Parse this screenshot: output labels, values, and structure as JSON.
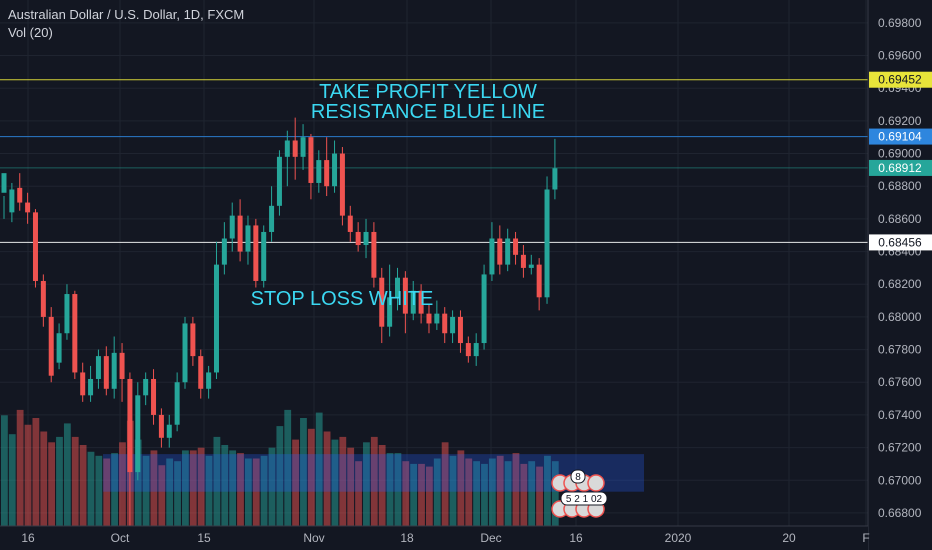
{
  "header": {
    "title": "Australian Dollar / U.S. Dollar, 1D, FXCM",
    "indicator": "Vol (20)"
  },
  "colors": {
    "background": "#131722",
    "grid": "#1f2430",
    "up": "#26a69a",
    "down": "#ef5350",
    "axis_text": "#b2b5be",
    "annotation": "#3bd8f2",
    "yellow_line": "#e8e43a",
    "blue_line": "#2e86de",
    "white_line": "#ffffff",
    "zone_fill": "#2962ff"
  },
  "annotations": [
    {
      "text": "TAKE PROFIT YELLOW"
    },
    {
      "text": "RESISTANCE BLUE LINE"
    },
    {
      "text": "STOP LOSS WHITE"
    }
  ],
  "event_badges": [
    {
      "text": "8"
    },
    {
      "text": "5 2 1 02"
    }
  ],
  "chart_data": {
    "type": "candlestick",
    "x_ticks": [
      "16",
      "Oct",
      "15",
      "Nov",
      "18",
      "Dec",
      "16",
      "2020",
      "20",
      "F"
    ],
    "y_ticks": [
      "0.69800",
      "0.69600",
      "0.69400",
      "0.69200",
      "0.69000",
      "0.68800",
      "0.68600",
      "0.68400",
      "0.68200",
      "0.68000",
      "0.67800",
      "0.67600",
      "0.67400",
      "0.67200",
      "0.67000",
      "0.66800"
    ],
    "ylim": [
      0.6672,
      0.6994
    ],
    "price_lines": [
      {
        "value": 0.69452,
        "label": "0.69452",
        "color": "#e8e43a"
      },
      {
        "value": 0.69104,
        "label": "0.69104",
        "color": "#2e86de"
      },
      {
        "value": 0.68912,
        "label": "0.68912",
        "color": "#26a69a"
      },
      {
        "value": 0.68456,
        "label": "0.68456",
        "color": "#ffffff"
      }
    ],
    "zone": {
      "y_top": 0.6716,
      "y_bottom": 0.6693
    },
    "candles": [
      [
        0.6876,
        0.6888,
        0.6874,
        0.686
      ],
      [
        0.6864,
        0.6878,
        0.6882,
        0.6858
      ],
      [
        0.6879,
        0.687,
        0.6888,
        0.6865
      ],
      [
        0.687,
        0.6864,
        0.6876,
        0.6857
      ],
      [
        0.6864,
        0.6822,
        0.6866,
        0.6818
      ],
      [
        0.6822,
        0.68,
        0.6826,
        0.6794
      ],
      [
        0.68,
        0.6764,
        0.6806,
        0.676
      ],
      [
        0.6772,
        0.679,
        0.6796,
        0.6768
      ],
      [
        0.679,
        0.6814,
        0.682,
        0.6786
      ],
      [
        0.6814,
        0.6766,
        0.6816,
        0.6762
      ],
      [
        0.6766,
        0.6752,
        0.6772,
        0.6748
      ],
      [
        0.6752,
        0.6762,
        0.677,
        0.6748
      ],
      [
        0.6762,
        0.6776,
        0.678,
        0.6756
      ],
      [
        0.6776,
        0.6756,
        0.6782,
        0.6752
      ],
      [
        0.6756,
        0.6778,
        0.6788,
        0.675
      ],
      [
        0.6778,
        0.6762,
        0.6784,
        0.6748
      ],
      [
        0.6762,
        0.6705,
        0.6766,
        0.667
      ],
      [
        0.6705,
        0.6752,
        0.676,
        0.67
      ],
      [
        0.6752,
        0.6762,
        0.6766,
        0.6746
      ],
      [
        0.6762,
        0.674,
        0.6768,
        0.6734
      ],
      [
        0.674,
        0.6726,
        0.6744,
        0.672
      ],
      [
        0.6726,
        0.6734,
        0.674,
        0.672
      ],
      [
        0.6734,
        0.676,
        0.6766,
        0.673
      ],
      [
        0.676,
        0.6796,
        0.68,
        0.6756
      ],
      [
        0.6796,
        0.6776,
        0.68,
        0.677
      ],
      [
        0.6776,
        0.6756,
        0.678,
        0.675
      ],
      [
        0.6756,
        0.6766,
        0.677,
        0.675
      ],
      [
        0.6766,
        0.6832,
        0.6846,
        0.6762
      ],
      [
        0.6832,
        0.6848,
        0.6858,
        0.6826
      ],
      [
        0.6848,
        0.6862,
        0.687,
        0.684
      ],
      [
        0.6862,
        0.684,
        0.6872,
        0.6834
      ],
      [
        0.684,
        0.6856,
        0.6862,
        0.6832
      ],
      [
        0.6856,
        0.6822,
        0.686,
        0.6818
      ],
      [
        0.6822,
        0.6852,
        0.6856,
        0.6818
      ],
      [
        0.6852,
        0.6868,
        0.688,
        0.6846
      ],
      [
        0.6868,
        0.6898,
        0.6902,
        0.6862
      ],
      [
        0.6898,
        0.6908,
        0.6914,
        0.688
      ],
      [
        0.6908,
        0.6898,
        0.6922,
        0.6884
      ],
      [
        0.6898,
        0.691,
        0.6918,
        0.689
      ],
      [
        0.691,
        0.6882,
        0.6912,
        0.6872
      ],
      [
        0.6882,
        0.6896,
        0.6902,
        0.6876
      ],
      [
        0.6896,
        0.688,
        0.691,
        0.6874
      ],
      [
        0.688,
        0.69,
        0.6908,
        0.6876
      ],
      [
        0.69,
        0.6862,
        0.6904,
        0.6856
      ],
      [
        0.6862,
        0.6852,
        0.6868,
        0.6846
      ],
      [
        0.6852,
        0.6844,
        0.6858,
        0.684
      ],
      [
        0.6844,
        0.6852,
        0.686,
        0.6836
      ],
      [
        0.6852,
        0.6824,
        0.6858,
        0.6818
      ],
      [
        0.6824,
        0.6794,
        0.683,
        0.6784
      ],
      [
        0.6794,
        0.6812,
        0.6832,
        0.6788
      ],
      [
        0.6812,
        0.6824,
        0.683,
        0.6804
      ],
      [
        0.6824,
        0.6802,
        0.6828,
        0.679
      ],
      [
        0.6802,
        0.6816,
        0.6822,
        0.6798
      ],
      [
        0.6816,
        0.6802,
        0.682,
        0.6796
      ],
      [
        0.6802,
        0.6796,
        0.6808,
        0.679
      ],
      [
        0.6796,
        0.6802,
        0.681,
        0.6792
      ],
      [
        0.6802,
        0.679,
        0.6806,
        0.6784
      ],
      [
        0.679,
        0.68,
        0.6804,
        0.6784
      ],
      [
        0.68,
        0.6784,
        0.6804,
        0.6778
      ],
      [
        0.6784,
        0.6776,
        0.6788,
        0.6772
      ],
      [
        0.6776,
        0.6784,
        0.679,
        0.677
      ],
      [
        0.6784,
        0.6826,
        0.6832,
        0.678
      ],
      [
        0.6826,
        0.6848,
        0.6858,
        0.6822
      ],
      [
        0.6848,
        0.6832,
        0.6856,
        0.6826
      ],
      [
        0.6832,
        0.6848,
        0.6854,
        0.6828
      ],
      [
        0.6848,
        0.6838,
        0.6852,
        0.6832
      ],
      [
        0.6838,
        0.683,
        0.6844,
        0.6824
      ],
      [
        0.683,
        0.6832,
        0.6838,
        0.6826
      ],
      [
        0.6832,
        0.6812,
        0.6836,
        0.6804
      ],
      [
        0.6812,
        0.6878,
        0.6886,
        0.6808
      ],
      [
        0.6878,
        0.6891,
        0.6909,
        0.6872
      ]
    ],
    "volumes": [
      0.82,
      0.68,
      0.86,
      0.75,
      0.8,
      0.7,
      0.62,
      0.66,
      0.76,
      0.66,
      0.6,
      0.55,
      0.52,
      0.5,
      0.54,
      0.62,
      0.78,
      0.64,
      0.52,
      0.56,
      0.45,
      0.5,
      0.48,
      0.56,
      0.56,
      0.58,
      0.52,
      0.66,
      0.6,
      0.56,
      0.54,
      0.5,
      0.5,
      0.52,
      0.58,
      0.74,
      0.86,
      0.64,
      0.8,
      0.72,
      0.84,
      0.7,
      0.64,
      0.66,
      0.58,
      0.48,
      0.62,
      0.66,
      0.6,
      0.54,
      0.54,
      0.48,
      0.46,
      0.46,
      0.44,
      0.5,
      0.62,
      0.52,
      0.56,
      0.5,
      0.48,
      0.46,
      0.5,
      0.52,
      0.48,
      0.54,
      0.46,
      0.48,
      0.44,
      0.52,
      0.48
    ]
  }
}
